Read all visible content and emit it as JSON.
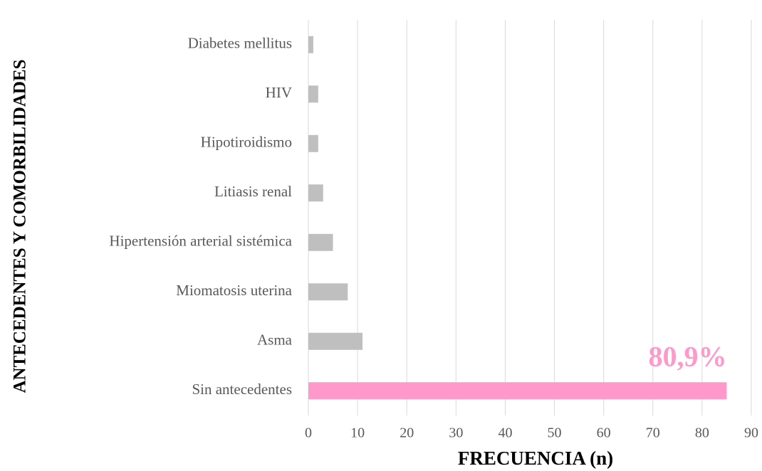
{
  "chart_data": {
    "type": "bar",
    "orientation": "horizontal",
    "xlabel": "FRECUENCIA (n)",
    "ylabel": "ANTECEDENTES Y COMORBILIDADES",
    "categories": [
      "Diabetes mellitus",
      "HIV",
      "Hipotiroidismo",
      "Litiasis renal",
      "Hipertensión arterial sistémica",
      "Miomatosis uterina",
      "Asma",
      "Sin antecedentes"
    ],
    "values": [
      1,
      2,
      2,
      3,
      5,
      8,
      11,
      85
    ],
    "colors": [
      "#bfbfbf",
      "#bfbfbf",
      "#bfbfbf",
      "#bfbfbf",
      "#bfbfbf",
      "#bfbfbf",
      "#bfbfbf",
      "#ff99cc"
    ],
    "annotation": "80,9%",
    "annotation_color": "#ff99cc",
    "xlim": [
      0,
      90
    ],
    "xticks": [
      0,
      10,
      20,
      30,
      40,
      50,
      60,
      70,
      80,
      90
    ],
    "grid": true
  }
}
